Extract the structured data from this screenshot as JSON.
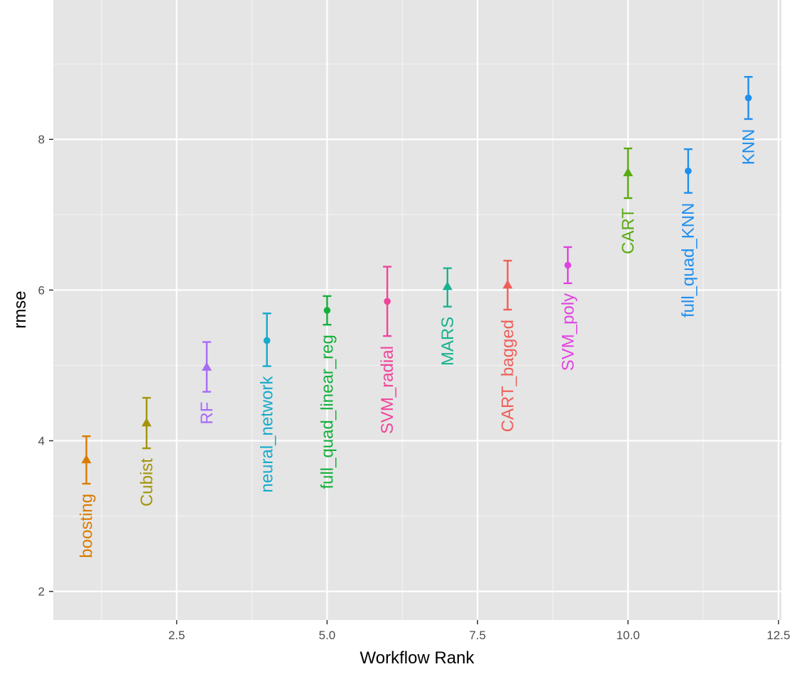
{
  "chart_data": {
    "type": "scatter",
    "title": "",
    "xlabel": "Workflow Rank",
    "ylabel": "rmse",
    "xlim": [
      0.45,
      12.55
    ],
    "ylim": [
      1.62,
      9.85
    ],
    "x_ticks": [
      2.5,
      5.0,
      7.5,
      10.0,
      12.5
    ],
    "x_tick_labels": [
      "2.5",
      "5.0",
      "7.5",
      "10.0",
      "12.5"
    ],
    "y_ticks": [
      2,
      4,
      6,
      8
    ],
    "y_tick_labels": [
      "2",
      "4",
      "6",
      "8"
    ],
    "grid": true,
    "legend": "none",
    "error_bars": true,
    "points": [
      {
        "rank": 1,
        "label": "boosting",
        "rmse": 3.75,
        "lower": 3.43,
        "upper": 4.06,
        "shape": "triangle",
        "color": "#d97b00"
      },
      {
        "rank": 2,
        "label": "Cubist",
        "rmse": 4.24,
        "lower": 3.9,
        "upper": 4.57,
        "shape": "triangle",
        "color": "#a3940b"
      },
      {
        "rank": 3,
        "label": "RF",
        "rmse": 4.98,
        "lower": 4.65,
        "upper": 5.31,
        "shape": "triangle",
        "color": "#a66cf5"
      },
      {
        "rank": 4,
        "label": "neural_network",
        "rmse": 5.33,
        "lower": 4.99,
        "upper": 5.69,
        "shape": "circle",
        "color": "#16aacb"
      },
      {
        "rank": 5,
        "label": "full_quad_linear_reg",
        "rmse": 5.73,
        "lower": 5.54,
        "upper": 5.92,
        "shape": "circle",
        "color": "#14b03c"
      },
      {
        "rank": 6,
        "label": "SVM_radial",
        "rmse": 5.85,
        "lower": 5.39,
        "upper": 6.31,
        "shape": "circle",
        "color": "#f0449a"
      },
      {
        "rank": 7,
        "label": "MARS",
        "rmse": 6.05,
        "lower": 5.78,
        "upper": 6.29,
        "shape": "triangle",
        "color": "#18b28f"
      },
      {
        "rank": 8,
        "label": "CART_bagged",
        "rmse": 6.07,
        "lower": 5.74,
        "upper": 6.39,
        "shape": "triangle",
        "color": "#ef5f5a"
      },
      {
        "rank": 9,
        "label": "SVM_poly",
        "rmse": 6.33,
        "lower": 6.09,
        "upper": 6.57,
        "shape": "circle",
        "color": "#e043e0"
      },
      {
        "rank": 10,
        "label": "CART",
        "rmse": 7.56,
        "lower": 7.22,
        "upper": 7.88,
        "shape": "triangle",
        "color": "#58ab12"
      },
      {
        "rank": 11,
        "label": "full_quad_KNN",
        "rmse": 7.58,
        "lower": 7.29,
        "upper": 7.87,
        "shape": "circle",
        "color": "#1e8ff0"
      },
      {
        "rank": 12,
        "label": "KNN",
        "rmse": 8.55,
        "lower": 8.27,
        "upper": 8.83,
        "shape": "circle",
        "color": "#1e8ff0"
      }
    ]
  }
}
